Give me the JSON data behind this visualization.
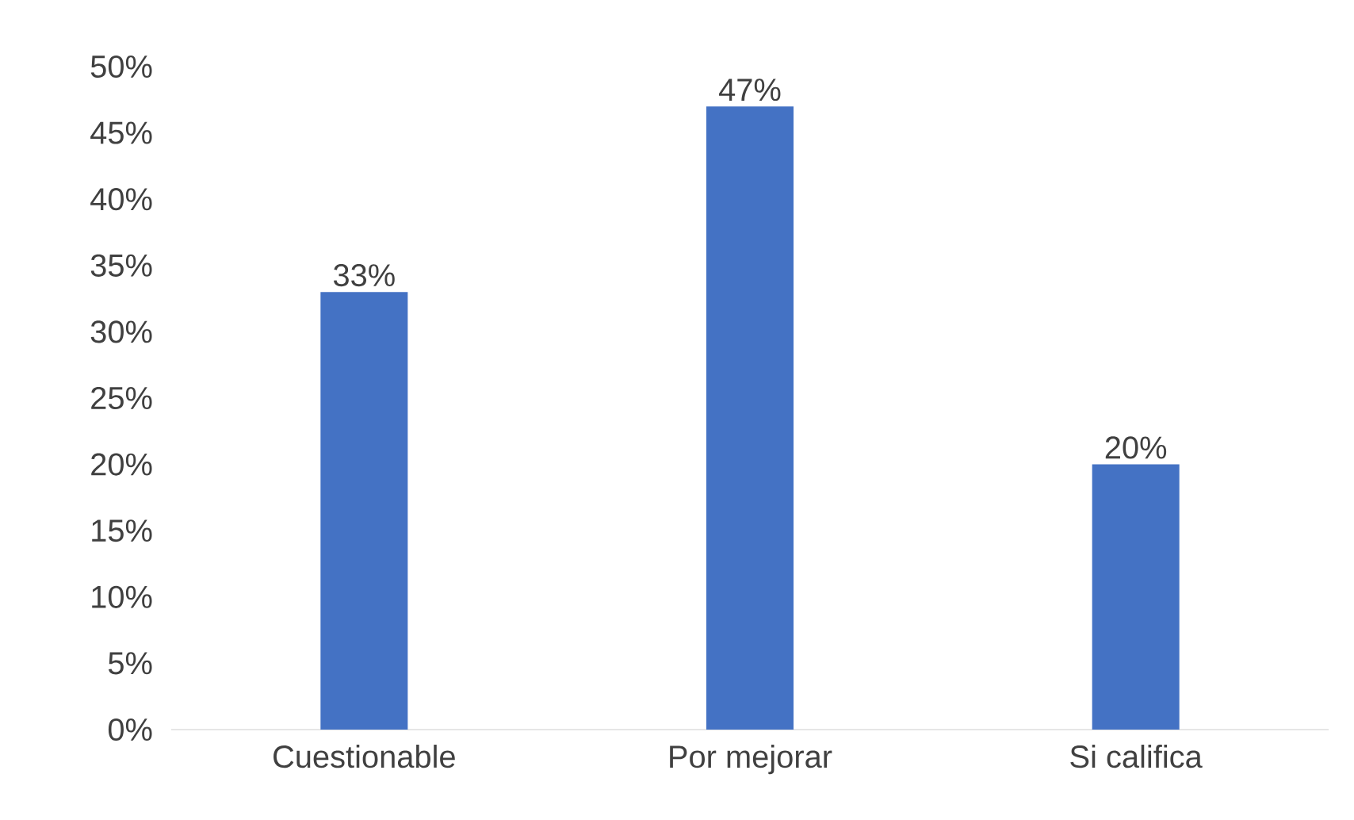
{
  "chart_data": {
    "type": "bar",
    "categories": [
      "Cuestionable",
      "Por mejorar",
      "Si califica"
    ],
    "values": [
      33,
      47,
      20
    ],
    "value_labels": [
      "33%",
      "47%",
      "20%"
    ],
    "color": "#4472c4",
    "ylim": [
      0,
      50
    ],
    "yticks": [
      {
        "value": 0,
        "label": "0%"
      },
      {
        "value": 5,
        "label": "5%"
      },
      {
        "value": 10,
        "label": "10%"
      },
      {
        "value": 15,
        "label": "15%"
      },
      {
        "value": 20,
        "label": "20%"
      },
      {
        "value": 25,
        "label": "25%"
      },
      {
        "value": 30,
        "label": "30%"
      },
      {
        "value": 35,
        "label": "35%"
      },
      {
        "value": 40,
        "label": "40%"
      },
      {
        "value": 45,
        "label": "45%"
      },
      {
        "value": 50,
        "label": "50%"
      }
    ]
  }
}
